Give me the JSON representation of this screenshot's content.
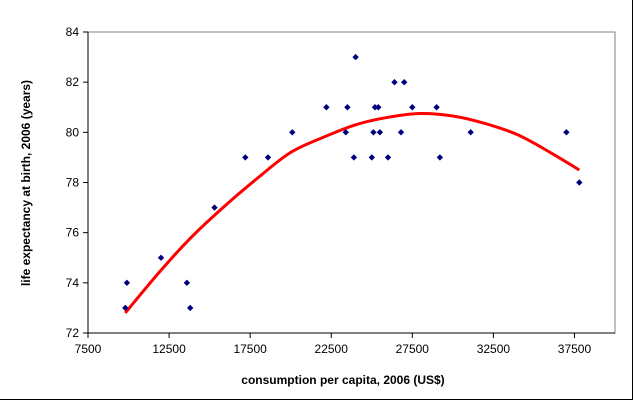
{
  "chart_data": {
    "type": "scatter",
    "xlabel": "consumption per capita, 2006 (US$)",
    "ylabel": "life expectancy at birth, 2006 (years)",
    "xlim": [
      7500,
      40000
    ],
    "ylim": [
      72,
      84
    ],
    "x_ticks": [
      "7500",
      "12500",
      "17500",
      "22500",
      "27500",
      "32500",
      "37500"
    ],
    "y_ticks": [
      "72",
      "74",
      "76",
      "78",
      "80",
      "82",
      "84"
    ],
    "grid": false,
    "legend": "none",
    "colors": {
      "points": "#00007f",
      "trend": "#ff0000",
      "axis": "#000000",
      "border": "#808080"
    },
    "series": [
      {
        "values": [
          {
            "x": 9800,
            "y": 73
          },
          {
            "x": 9900,
            "y": 74
          },
          {
            "x": 12000,
            "y": 75
          },
          {
            "x": 13600,
            "y": 74
          },
          {
            "x": 13800,
            "y": 73
          },
          {
            "x": 15300,
            "y": 77
          },
          {
            "x": 17200,
            "y": 79
          },
          {
            "x": 18600,
            "y": 79
          },
          {
            "x": 20100,
            "y": 80
          },
          {
            "x": 22200,
            "y": 81
          },
          {
            "x": 23400,
            "y": 80
          },
          {
            "x": 23500,
            "y": 81
          },
          {
            "x": 23900,
            "y": 79
          },
          {
            "x": 24000,
            "y": 83
          },
          {
            "x": 25000,
            "y": 79
          },
          {
            "x": 25100,
            "y": 80
          },
          {
            "x": 25200,
            "y": 81
          },
          {
            "x": 25400,
            "y": 81
          },
          {
            "x": 25500,
            "y": 80
          },
          {
            "x": 26000,
            "y": 79
          },
          {
            "x": 26400,
            "y": 82
          },
          {
            "x": 26800,
            "y": 80
          },
          {
            "x": 27000,
            "y": 82
          },
          {
            "x": 27500,
            "y": 81
          },
          {
            "x": 29000,
            "y": 81
          },
          {
            "x": 29200,
            "y": 79
          },
          {
            "x": 31100,
            "y": 80
          },
          {
            "x": 37000,
            "y": 80
          },
          {
            "x": 37800,
            "y": 78
          }
        ]
      }
    ],
    "trendline": {
      "kind": "polynomial-2",
      "values": [
        {
          "x": 9800,
          "y": 72.8
        },
        {
          "x": 12000,
          "y": 74.5
        },
        {
          "x": 14000,
          "y": 75.9
        },
        {
          "x": 16000,
          "y": 77.1
        },
        {
          "x": 18000,
          "y": 78.2
        },
        {
          "x": 20000,
          "y": 79.2
        },
        {
          "x": 22000,
          "y": 79.8
        },
        {
          "x": 24000,
          "y": 80.3
        },
        {
          "x": 26000,
          "y": 80.6
        },
        {
          "x": 28000,
          "y": 80.75
        },
        {
          "x": 30000,
          "y": 80.65
        },
        {
          "x": 32000,
          "y": 80.35
        },
        {
          "x": 34000,
          "y": 79.9
        },
        {
          "x": 36000,
          "y": 79.2
        },
        {
          "x": 37800,
          "y": 78.5
        }
      ]
    }
  }
}
